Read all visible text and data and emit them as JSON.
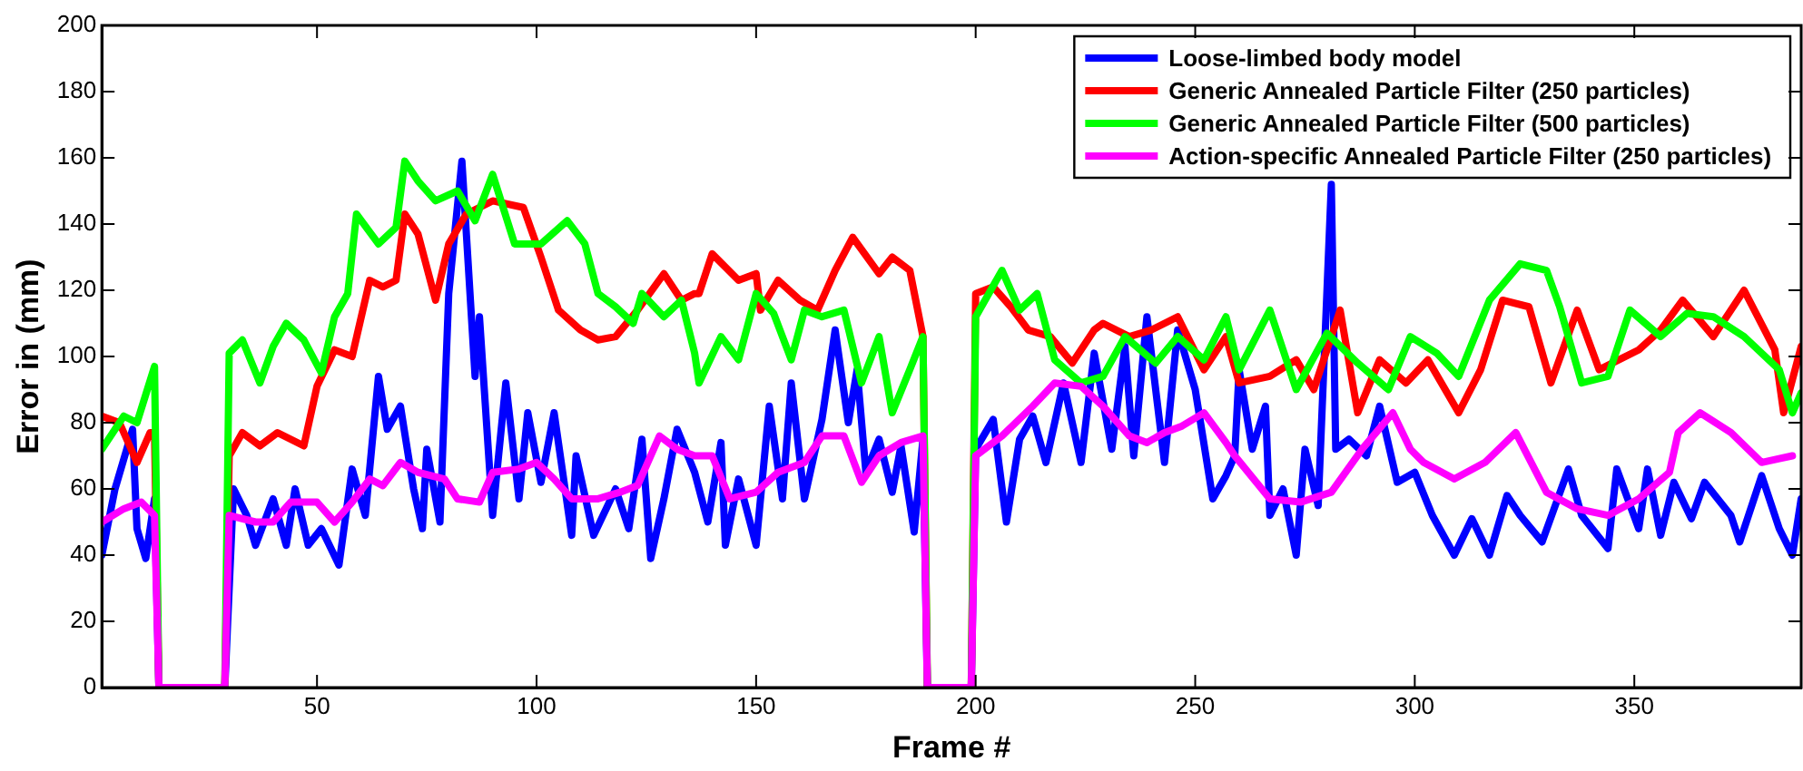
{
  "chart_data": {
    "type": "line",
    "xlabel": "Frame #",
    "ylabel": "Error in (mm)",
    "xlim": [
      1,
      388
    ],
    "xticks": [
      50,
      100,
      150,
      200,
      250,
      300,
      350
    ],
    "ylim": [
      0,
      200
    ],
    "yticks": [
      0,
      20,
      40,
      60,
      80,
      100,
      120,
      140,
      160,
      180,
      200
    ],
    "grid": false,
    "legend": "top right",
    "marker": "none",
    "line_style": "solid",
    "series": [
      {
        "name": "Loose-limbed body model",
        "color": "#0000ff",
        "x": [
          1,
          4,
          8,
          9,
          11,
          13,
          14,
          29,
          31,
          34,
          36,
          40,
          43,
          45,
          48,
          51,
          55,
          58,
          61,
          64,
          66,
          69,
          72,
          74,
          75,
          78,
          80,
          83,
          86,
          87,
          90,
          93,
          96,
          98,
          101,
          104,
          108,
          109,
          113,
          118,
          121,
          124,
          126,
          129,
          132,
          136,
          139,
          142,
          143,
          146,
          150,
          153,
          156,
          158,
          161,
          165,
          168,
          171,
          173,
          175,
          178,
          181,
          183,
          186,
          188,
          189,
          199,
          200,
          204,
          207,
          210,
          213,
          216,
          220,
          224,
          227,
          231,
          234,
          236,
          239,
          243,
          246,
          250,
          254,
          257,
          259,
          260,
          263,
          266,
          267,
          270,
          273,
          275,
          278,
          281,
          282,
          285,
          289,
          292,
          296,
          300,
          304,
          309,
          313,
          317,
          321,
          324,
          329,
          332,
          335,
          338,
          344,
          346,
          351,
          353,
          356,
          359,
          363,
          366,
          372,
          374,
          379,
          383,
          386,
          388
        ],
        "values": [
          40,
          60,
          78,
          48,
          39,
          57,
          0,
          0,
          60,
          52,
          43,
          57,
          43,
          60,
          43,
          48,
          37,
          66,
          52,
          94,
          78,
          85,
          60,
          48,
          72,
          50,
          119,
          159,
          94,
          112,
          52,
          92,
          57,
          83,
          62,
          83,
          46,
          70,
          46,
          60,
          48,
          75,
          39,
          57,
          78,
          65,
          50,
          74,
          43,
          63,
          43,
          85,
          57,
          92,
          57,
          81,
          108,
          80,
          96,
          65,
          75,
          59,
          73,
          47,
          75,
          0,
          0,
          72,
          81,
          50,
          75,
          82,
          68,
          92,
          68,
          101,
          72,
          103,
          70,
          112,
          68,
          108,
          90,
          57,
          64,
          70,
          96,
          72,
          85,
          52,
          60,
          40,
          72,
          55,
          152,
          72,
          75,
          70,
          85,
          62,
          65,
          52,
          40,
          51,
          40,
          58,
          52,
          44,
          55,
          66,
          52,
          42,
          66,
          48,
          66,
          46,
          62,
          51,
          62,
          52,
          44,
          64,
          48,
          40,
          57
        ]
      },
      {
        "name": "Generic Annealed Particle Filter (250 particles)",
        "color": "#ff0000",
        "x": [
          1,
          5,
          9,
          12,
          13,
          14,
          29,
          30,
          33,
          37,
          41,
          44,
          47,
          50,
          54,
          58,
          62,
          65,
          68,
          70,
          73,
          77,
          80,
          84,
          90,
          97,
          101,
          105,
          110,
          114,
          118,
          123,
          129,
          133,
          136,
          137,
          140,
          146,
          150,
          151,
          155,
          160,
          164,
          168,
          172,
          178,
          181,
          185,
          188,
          189,
          199,
          200,
          204,
          208,
          212,
          217,
          222,
          227,
          229,
          235,
          240,
          246,
          252,
          257,
          260,
          267,
          273,
          277,
          283,
          287,
          292,
          298,
          303,
          310,
          315,
          320,
          326,
          331,
          337,
          342,
          351,
          356,
          361,
          368,
          375,
          382,
          384,
          388
        ],
        "values": [
          82,
          80,
          68,
          77,
          77,
          0,
          0,
          70,
          77,
          73,
          77,
          75,
          73,
          91,
          102,
          100,
          123,
          121,
          123,
          143,
          137,
          117,
          134,
          143,
          147,
          145,
          130,
          114,
          108,
          105,
          106,
          114,
          125,
          117,
          119,
          119,
          131,
          123,
          125,
          114,
          123,
          117,
          114,
          126,
          136,
          125,
          130,
          126,
          106,
          0,
          0,
          119,
          121,
          115,
          108,
          106,
          98,
          108,
          110,
          106,
          108,
          112,
          96,
          106,
          92,
          94,
          99,
          90,
          114,
          83,
          99,
          92,
          99,
          83,
          96,
          117,
          115,
          92,
          114,
          96,
          102,
          108,
          117,
          106,
          120,
          102,
          83,
          103
        ]
      },
      {
        "name": "Generic Annealed Particle Filter (500 particles)",
        "color": "#00ff00",
        "x": [
          1,
          6,
          9,
          13,
          14,
          29,
          30,
          33,
          37,
          40,
          43,
          47,
          51,
          54,
          57,
          59,
          64,
          68,
          70,
          73,
          77,
          82,
          86,
          90,
          95,
          101,
          107,
          111,
          114,
          118,
          122,
          124,
          129,
          133,
          136,
          137,
          142,
          146,
          150,
          154,
          158,
          161,
          165,
          170,
          174,
          178,
          181,
          185,
          188,
          189,
          199,
          200,
          206,
          210,
          214,
          218,
          224,
          229,
          234,
          241,
          246,
          252,
          257,
          260,
          267,
          273,
          280,
          287,
          294,
          299,
          305,
          310,
          317,
          324,
          330,
          333,
          338,
          344,
          349,
          356,
          362,
          368,
          375,
          383,
          386,
          388
        ],
        "values": [
          72,
          82,
          80,
          97,
          0,
          0,
          101,
          105,
          92,
          103,
          110,
          105,
          95,
          112,
          119,
          143,
          134,
          139,
          159,
          153,
          147,
          150,
          141,
          155,
          134,
          134,
          141,
          134,
          119,
          115,
          110,
          119,
          112,
          117,
          101,
          92,
          106,
          99,
          119,
          113,
          99,
          114,
          112,
          114,
          92,
          106,
          83,
          96,
          106,
          0,
          0,
          112,
          126,
          114,
          119,
          99,
          92,
          94,
          106,
          98,
          106,
          99,
          112,
          96,
          114,
          90,
          107,
          98,
          90,
          106,
          101,
          94,
          117,
          128,
          126,
          115,
          92,
          94,
          114,
          106,
          113,
          112,
          106,
          96,
          83,
          89
        ]
      },
      {
        "name": "Action-specific Annealed Particle Filter (250 particles)",
        "color": "#ff00ff",
        "x": [
          1,
          6,
          10,
          13,
          14,
          29,
          30,
          36,
          40,
          44,
          50,
          54,
          58,
          62,
          65,
          69,
          73,
          79,
          82,
          87,
          90,
          96,
          100,
          104,
          108,
          114,
          119,
          123,
          128,
          132,
          136,
          140,
          144,
          150,
          155,
          161,
          165,
          170,
          174,
          178,
          183,
          188,
          189,
          199,
          200,
          206,
          213,
          218,
          224,
          229,
          235,
          239,
          243,
          247,
          252,
          257,
          259,
          267,
          274,
          281,
          288,
          295,
          299,
          302,
          309,
          316,
          323,
          330,
          337,
          344,
          351,
          358,
          360,
          365,
          372,
          379,
          386
        ],
        "values": [
          50,
          54,
          56,
          52,
          0,
          0,
          52,
          50,
          50,
          56,
          56,
          50,
          56,
          63,
          61,
          68,
          65,
          63,
          57,
          56,
          65,
          66,
          68,
          63,
          57,
          57,
          59,
          61,
          76,
          72,
          70,
          70,
          57,
          59,
          65,
          68,
          76,
          76,
          62,
          70,
          74,
          76,
          0,
          0,
          70,
          76,
          85,
          92,
          91,
          85,
          76,
          74,
          77,
          79,
          83,
          74,
          70,
          57,
          56,
          59,
          72,
          83,
          72,
          68,
          63,
          68,
          77,
          59,
          54,
          52,
          57,
          65,
          77,
          83,
          77,
          68,
          70
        ]
      }
    ]
  }
}
